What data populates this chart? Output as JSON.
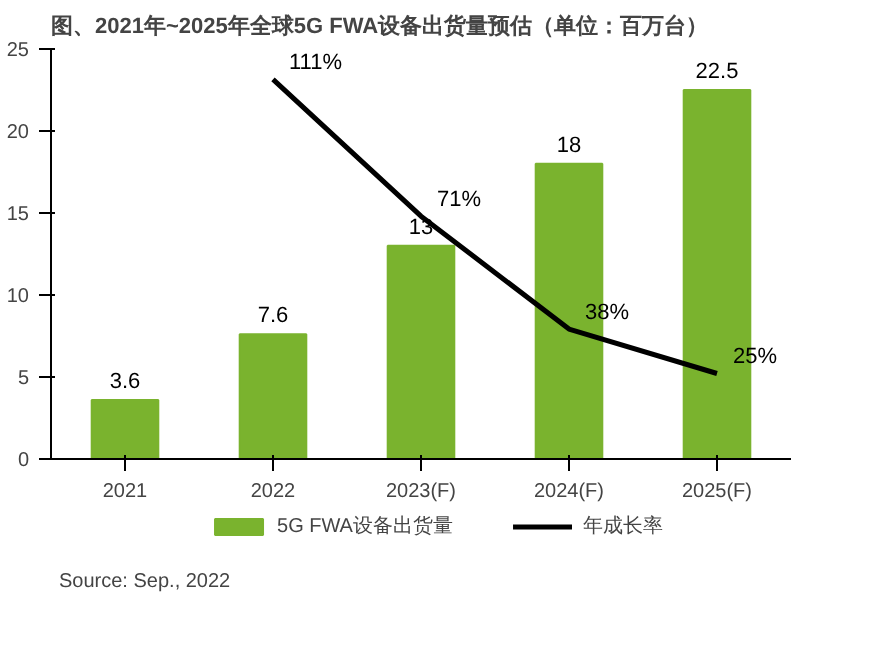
{
  "chart_data": {
    "type": "bar",
    "title": "图、2021年~2025年全球5G FWA设备出货量预估（单位：百万台）",
    "categories": [
      "2021",
      "2022",
      "2023(F)",
      "2024(F)",
      "2025(F)"
    ],
    "series": [
      {
        "name": "5G FWA设备出货量",
        "color": "#7ab32e",
        "values": [
          3.6,
          7.6,
          13,
          18,
          22.5
        ]
      },
      {
        "name": "年成长率",
        "type": "line",
        "color": "#000000",
        "axis": "y2",
        "values": [
          null,
          111,
          71,
          38,
          25
        ],
        "value_labels": [
          null,
          "111%",
          "71%",
          "38%",
          "25%"
        ]
      }
    ],
    "data_labels": true,
    "ylim": [
      0,
      25
    ],
    "yticks": [
      0,
      5,
      10,
      15,
      20,
      25
    ],
    "grid": false,
    "legend": "bottom",
    "marker": "none",
    "line_style": "solid",
    "annotations": [
      "Source: Sep., 2022"
    ]
  }
}
